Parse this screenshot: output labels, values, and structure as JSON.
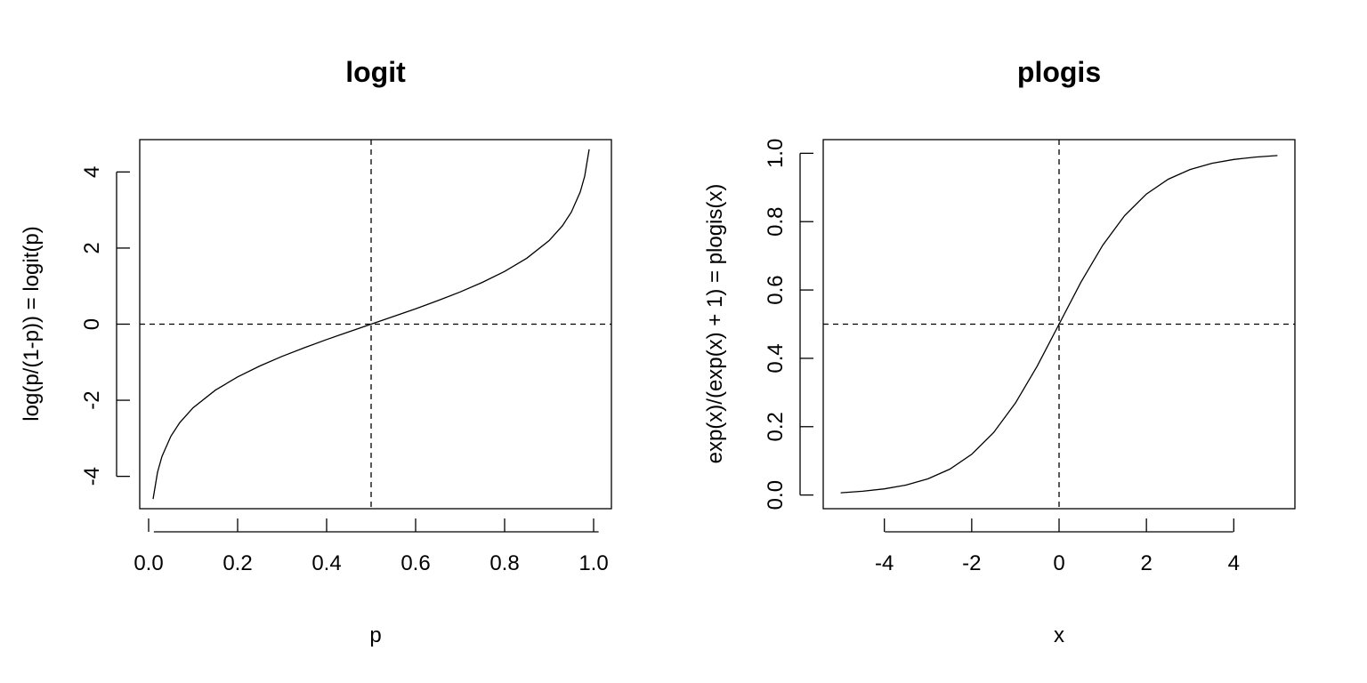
{
  "chart_data": [
    {
      "type": "line",
      "title": "logit",
      "xlabel": "p",
      "ylabel": "log(p/(1-p)) = logit(p)",
      "xlim": [
        -0.02,
        1.04
      ],
      "ylim": [
        -4.85,
        4.85
      ],
      "x_ticks": [
        0.0,
        0.2,
        0.4,
        0.6,
        0.8,
        1.0
      ],
      "x_tick_labels": [
        "0.0",
        "0.2",
        "0.4",
        "0.6",
        "0.8",
        "1.0"
      ],
      "y_ticks": [
        -4,
        -2,
        0,
        2,
        4
      ],
      "y_tick_labels": [
        "-4",
        "-2",
        "0",
        "2",
        "4"
      ],
      "series": [
        {
          "x": [
            0.01,
            0.02,
            0.03,
            0.05,
            0.07,
            0.1,
            0.15,
            0.2,
            0.25,
            0.3,
            0.35,
            0.4,
            0.45,
            0.5,
            0.55,
            0.6,
            0.65,
            0.7,
            0.75,
            0.8,
            0.85,
            0.9,
            0.93,
            0.95,
            0.97,
            0.98,
            0.99
          ],
          "y": [
            -4.595,
            -3.892,
            -3.476,
            -2.944,
            -2.587,
            -2.197,
            -1.735,
            -1.386,
            -1.099,
            -0.847,
            -0.619,
            -0.405,
            -0.201,
            0.0,
            0.201,
            0.405,
            0.619,
            0.847,
            1.099,
            1.386,
            1.735,
            2.197,
            2.587,
            2.944,
            3.476,
            3.892,
            4.595
          ]
        }
      ],
      "reference_lines": [
        {
          "orientation": "vertical",
          "value": 0.5,
          "style": "dashed"
        },
        {
          "orientation": "horizontal",
          "value": 0,
          "style": "dashed"
        }
      ],
      "grid": false
    },
    {
      "type": "line",
      "title": "plogis",
      "xlabel": "x",
      "ylabel": "exp(x)/(exp(x) + 1) = plogis(x)",
      "xlim": [
        -5.4,
        5.4
      ],
      "ylim": [
        -0.04,
        1.04
      ],
      "x_ticks": [
        -4,
        -2,
        0,
        2,
        4
      ],
      "x_tick_labels": [
        "-4",
        "-2",
        "0",
        "2",
        "4"
      ],
      "y_ticks": [
        0.0,
        0.2,
        0.4,
        0.6,
        0.8,
        1.0
      ],
      "y_tick_labels": [
        "0.0",
        "0.2",
        "0.4",
        "0.6",
        "0.8",
        "1.0"
      ],
      "series": [
        {
          "x": [
            -5,
            -4.5,
            -4,
            -3.5,
            -3,
            -2.5,
            -2,
            -1.5,
            -1,
            -0.5,
            0,
            0.5,
            1,
            1.5,
            2,
            2.5,
            3,
            3.5,
            4,
            4.5,
            5
          ],
          "y": [
            0.0067,
            0.011,
            0.018,
            0.0293,
            0.0474,
            0.0759,
            0.1192,
            0.1824,
            0.2689,
            0.3775,
            0.5,
            0.6225,
            0.7311,
            0.8176,
            0.8808,
            0.9241,
            0.9526,
            0.9707,
            0.982,
            0.989,
            0.9933
          ]
        }
      ],
      "reference_lines": [
        {
          "orientation": "vertical",
          "value": 0,
          "style": "dashed"
        },
        {
          "orientation": "horizontal",
          "value": 0.5,
          "style": "dashed"
        }
      ],
      "grid": false
    }
  ]
}
